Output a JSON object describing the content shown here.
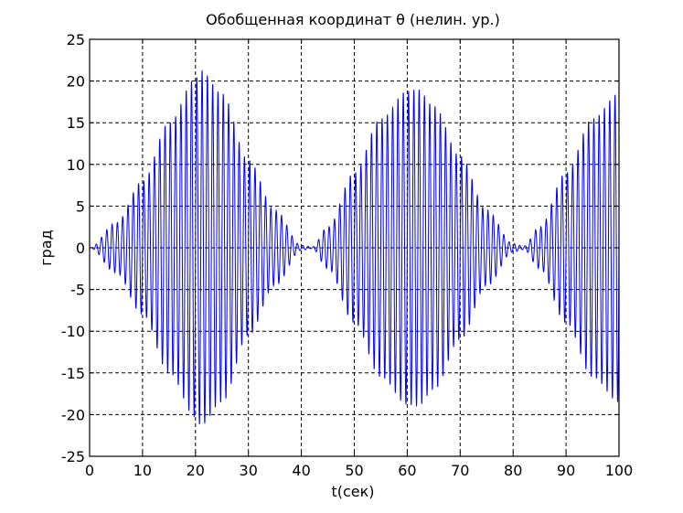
{
  "chart_data": {
    "type": "line",
    "title": "Обобщенная координат θ (нелин. ур.)",
    "xlabel": "t(сек)",
    "ylabel": "град",
    "xlim": [
      0,
      100
    ],
    "ylim": [
      -25,
      25
    ],
    "x_ticks": [
      "0",
      "10",
      "20",
      "30",
      "40",
      "50",
      "60",
      "70",
      "80",
      "90",
      "100"
    ],
    "y_ticks": [
      "25",
      "20",
      "15",
      "10",
      "5",
      "0",
      "-5",
      "-10",
      "-15",
      "-20",
      "-25"
    ],
    "grid": true,
    "series": [
      {
        "color": "#0000ff",
        "t_start": 0,
        "t_end": 100,
        "oscillation_period_sec": 1,
        "envelope": {
          "t": [
            0,
            5,
            10,
            15,
            20,
            21,
            25,
            30,
            35,
            40,
            42,
            45,
            50,
            55,
            60,
            62,
            65,
            70,
            75,
            80,
            82,
            85,
            90,
            95,
            100
          ],
          "amplitude_deg": [
            0,
            3,
            8,
            15,
            20.3,
            21.3,
            18.5,
            10.5,
            4.5,
            0.3,
            0.1,
            2.5,
            9,
            15.5,
            18.8,
            19,
            17,
            11,
            4.5,
            0.5,
            0.2,
            2.5,
            9,
            15.5,
            18.5
          ]
        }
      }
    ]
  }
}
